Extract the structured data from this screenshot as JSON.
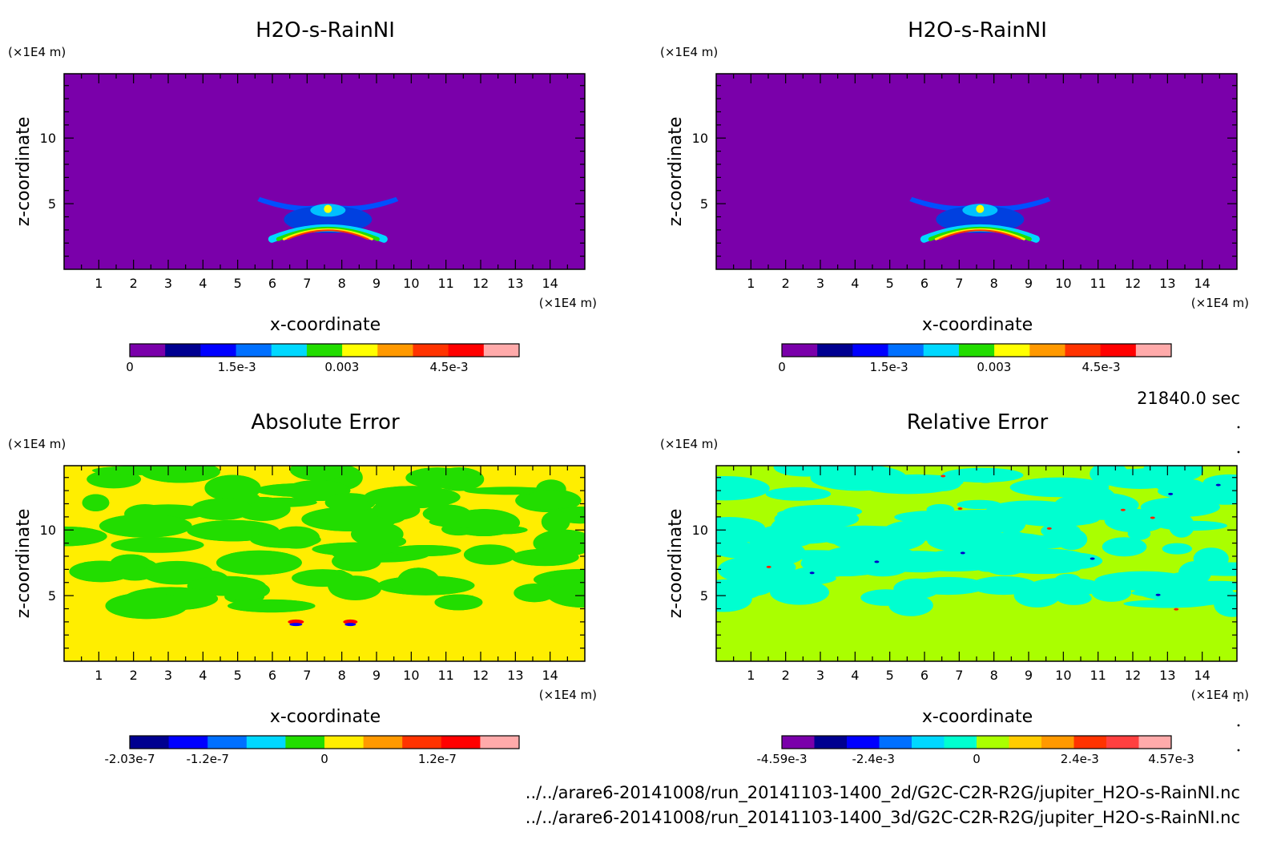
{
  "panels": [
    {
      "id": "tl",
      "title": "H2O-s-RainNI",
      "xlabel": "x-coordinate",
      "ylabel": "z-coordinate",
      "x_unit": "(×1E4 m)",
      "y_unit": "(×1E4 m)",
      "x_ticks": [
        "1",
        "2",
        "3",
        "4",
        "5",
        "6",
        "7",
        "8",
        "9",
        "10",
        "11",
        "12",
        "13",
        "14"
      ],
      "y_ticks": [
        "5",
        "10"
      ],
      "colorbar": {
        "colors": [
          "#7a00aa",
          "#000090",
          "#0000ff",
          "#0070ff",
          "#00d8ff",
          "#22dd00",
          "#ffff00",
          "#ff9900",
          "#ff3300",
          "#ff0000",
          "#ffaaaa"
        ],
        "labels": [
          "0",
          "1.5e-3",
          "0.003",
          "4.5e-3"
        ]
      },
      "field": "rain"
    },
    {
      "id": "tr",
      "title": "H2O-s-RainNI",
      "xlabel": "x-coordinate",
      "ylabel": "z-coordinate",
      "x_unit": "(×1E4 m)",
      "y_unit": "(×1E4 m)",
      "x_ticks": [
        "1",
        "2",
        "3",
        "4",
        "5",
        "6",
        "7",
        "8",
        "9",
        "10",
        "11",
        "12",
        "13",
        "14"
      ],
      "y_ticks": [
        "5",
        "10"
      ],
      "colorbar": {
        "colors": [
          "#7a00aa",
          "#000090",
          "#0000ff",
          "#0070ff",
          "#00d8ff",
          "#22dd00",
          "#ffff00",
          "#ff9900",
          "#ff3300",
          "#ff0000",
          "#ffaaaa"
        ],
        "labels": [
          "0",
          "1.5e-3",
          "0.003",
          "4.5e-3"
        ]
      },
      "field": "rain"
    },
    {
      "id": "bl",
      "title": "Absolute Error",
      "xlabel": "x-coordinate",
      "ylabel": "z-coordinate",
      "x_unit": "(×1E4 m)",
      "y_unit": "(×1E4 m)",
      "x_ticks": [
        "1",
        "2",
        "3",
        "4",
        "5",
        "6",
        "7",
        "8",
        "9",
        "10",
        "11",
        "12",
        "13",
        "14"
      ],
      "y_ticks": [
        "5",
        "10"
      ],
      "colorbar": {
        "colors": [
          "#000090",
          "#0000ff",
          "#0070ff",
          "#00d8ff",
          "#22dd00",
          "#ffee00",
          "#ff9900",
          "#ff3300",
          "#ff0000",
          "#ffaaaa"
        ],
        "labels": [
          "-2.03e-7",
          "-1.2e-7",
          "0",
          "1.2e-7"
        ]
      },
      "field": "abs"
    },
    {
      "id": "br",
      "title": "Relative Error",
      "xlabel": "x-coordinate",
      "ylabel": "z-coordinate",
      "x_unit": "(×1E4 m)",
      "y_unit": "(×1E4 m)",
      "x_ticks": [
        "1",
        "2",
        "3",
        "4",
        "5",
        "6",
        "7",
        "8",
        "9",
        "10",
        "11",
        "12",
        "13",
        "14"
      ],
      "y_ticks": [
        "5",
        "10"
      ],
      "colorbar": {
        "colors": [
          "#7a00aa",
          "#000090",
          "#0000ff",
          "#0070ff",
          "#00d8ff",
          "#00ffd0",
          "#aaff00",
          "#ffcc00",
          "#ff9900",
          "#ff3300",
          "#ff4040",
          "#ffaaaa"
        ],
        "labels": [
          "-4.59e-3",
          "-2.4e-3",
          "0",
          "2.4e-3",
          "4.57e-3"
        ]
      },
      "field": "rel"
    }
  ],
  "time_label": "21840.0 sec",
  "footer": {
    "line1": "../../arare6-20141008/run_20141103-1400_2d/G2C-C2R-R2G/jupiter_H2O-s-RainNI.nc",
    "line2": "../../arare6-20141008/run_20141103-1400_3d/G2C-C2R-R2G/jupiter_H2O-s-RainNI.nc"
  },
  "chart_data": [
    {
      "type": "heatmap",
      "title": "H2O-s-RainNI",
      "xlabel": "x-coordinate",
      "ylabel": "z-coordinate",
      "x_unit": "×1E4 m",
      "y_unit": "×1E4 m",
      "xlim": [
        0,
        15
      ],
      "ylim": [
        0,
        15
      ],
      "colorbar_range": [
        0,
        0.0055
      ],
      "features": "rain cloud centered near x=7.6, z=3-6"
    },
    {
      "type": "heatmap",
      "title": "H2O-s-RainNI",
      "xlabel": "x-coordinate",
      "ylabel": "z-coordinate",
      "x_unit": "×1E4 m",
      "y_unit": "×1E4 m",
      "xlim": [
        0,
        15
      ],
      "ylim": [
        0,
        15
      ],
      "colorbar_range": [
        0,
        0.0055
      ],
      "features": "rain cloud centered near x=7.6, z=3-6"
    },
    {
      "type": "heatmap",
      "title": "Absolute Error",
      "xlabel": "x-coordinate",
      "ylabel": "z-coordinate",
      "x_unit": "×1E4 m",
      "y_unit": "×1E4 m",
      "xlim": [
        0,
        15
      ],
      "ylim": [
        0,
        15
      ],
      "colorbar_range": [
        -2.03e-07,
        2e-07
      ]
    },
    {
      "type": "heatmap",
      "title": "Relative Error",
      "xlabel": "x-coordinate",
      "ylabel": "z-coordinate",
      "x_unit": "×1E4 m",
      "y_unit": "×1E4 m",
      "xlim": [
        0,
        15
      ],
      "ylim": [
        0,
        15
      ],
      "colorbar_range": [
        -0.00459,
        0.00457
      ]
    }
  ]
}
